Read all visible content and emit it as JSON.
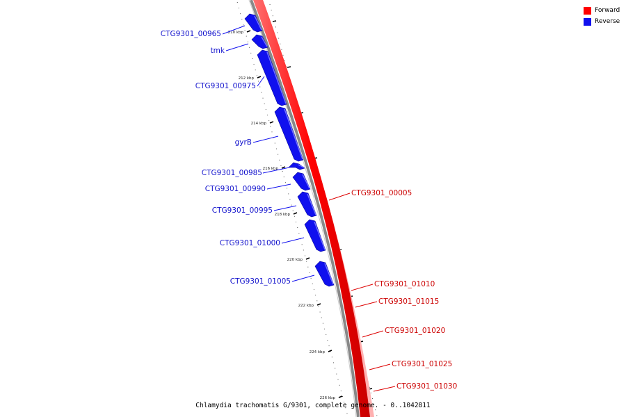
{
  "colors": {
    "forward": "#ff0000",
    "reverse": "#1010ee",
    "backbone": "#888888",
    "tick": "#000000"
  },
  "legend": [
    {
      "label": "Forward",
      "color": "#ff0000"
    },
    {
      "label": "Reverse",
      "color": "#1010ee"
    }
  ],
  "caption": "Chlamydia trachomatis G/9301, complete genome. - 0..1042811",
  "ticks": [
    "210 kbp",
    "212 kbp",
    "214 kbp",
    "216 kbp",
    "218 kbp",
    "220 kbp",
    "222 kbp",
    "224 kbp",
    "226 kbp"
  ],
  "reverse_genes": [
    "CTG9301_00965",
    "tmk",
    "CTG9301_00975",
    "gyrB",
    "CTG9301_00985",
    "CTG9301_00990",
    "CTG9301_00995",
    "CTG9301_01000",
    "CTG9301_01005"
  ],
  "forward_genes": [
    "CTG9301_00005",
    "CTG9301_01010",
    "CTG9301_01015",
    "CTG9301_01020",
    "CTG9301_01025",
    "CTG9301_01030"
  ]
}
